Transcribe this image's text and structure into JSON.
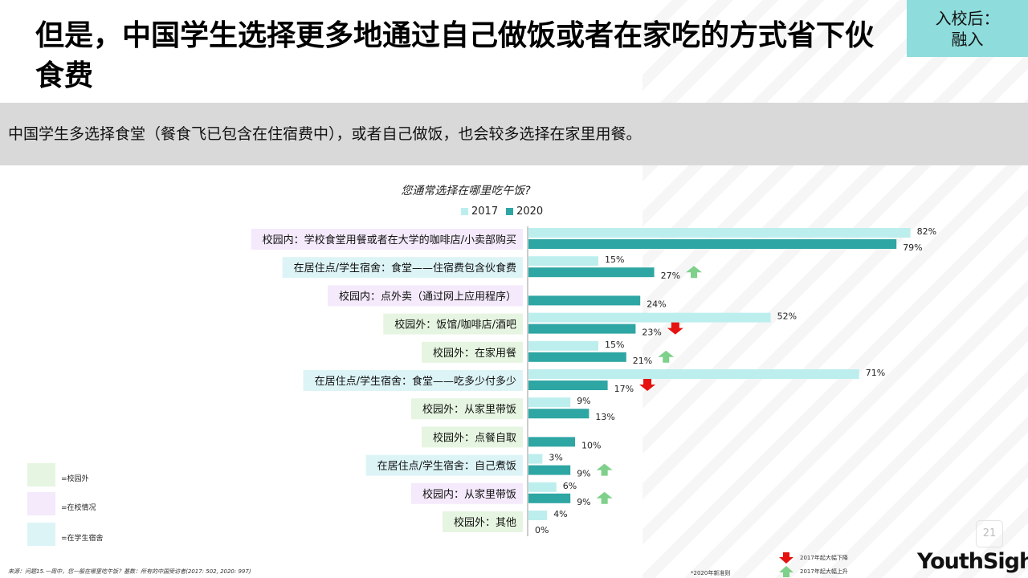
{
  "header": {
    "title": "但是，中国学生选择更多地通过自己做饭或者在家吃的方式省下伙食费",
    "tag": "入校后：\n融入"
  },
  "banner": {
    "text": "中国学生多选择食堂（餐食飞已包含在住宿费中），或者自己做饭，也会较多选择在家里用餐。"
  },
  "colors": {
    "series_2017": "#bdeeee",
    "series_2020": "#2ea6a3",
    "cat_off_campus": "#e6f5e1",
    "cat_on_campus": "#f4eafb",
    "cat_dorm": "#ddf4f7",
    "arrow_up": "#7ed08a",
    "arrow_down": "#e5120f"
  },
  "chart_data": {
    "type": "bar",
    "title": "您通常选择在哪里吃午饭?",
    "series": [
      {
        "name": "2017",
        "values": [
          82,
          15,
          null,
          52,
          15,
          71,
          9,
          null,
          3,
          6,
          4
        ]
      },
      {
        "name": "2020",
        "values": [
          79,
          27,
          24,
          23,
          21,
          17,
          13,
          10,
          9,
          9,
          0
        ]
      }
    ],
    "categories": [
      "校园内：学校食堂用餐或者在大学的咖啡店/小卖部购买",
      "在居住点/学生宿舍：食堂——住宿费包含伙食费",
      "校园内：点外卖（通过网上应用程序）",
      "校园外：饭馆/咖啡店/酒吧",
      "校园外：在家用餐",
      "在居住点/学生宿舍：食堂——吃多少付多少",
      "校园外：从家里带饭",
      "校园外：点餐自取",
      "在居住点/学生宿舍：自己煮饭",
      "校园内：从家里带饭",
      "校园外：其他"
    ],
    "category_group": [
      "on_campus",
      "dorm",
      "on_campus",
      "off_campus",
      "off_campus",
      "dorm",
      "off_campus",
      "off_campus",
      "dorm",
      "on_campus",
      "off_campus"
    ],
    "trend": [
      null,
      "up",
      null,
      "down",
      "up",
      "down",
      null,
      null,
      "up",
      "up",
      null
    ],
    "value_suffix": "%",
    "xlim": [
      0,
      100
    ],
    "legend_position": "top"
  },
  "category_legend": [
    {
      "key": "off_campus",
      "label": "=校园外"
    },
    {
      "key": "on_campus",
      "label": "=在校情况"
    },
    {
      "key": "dorm",
      "label": "=在学生宿舍"
    }
  ],
  "trend_legend": {
    "down": "2017年起大幅下降",
    "up": "2017年起大幅上升"
  },
  "footer": {
    "source": "来源：问题15.一周中，您一般在哪里吃午饭？基数：所有的中国受访者(2017: 502, 2020: 997)",
    "note": "*2020年新准则",
    "page": "21",
    "brand": "YouthSight"
  }
}
